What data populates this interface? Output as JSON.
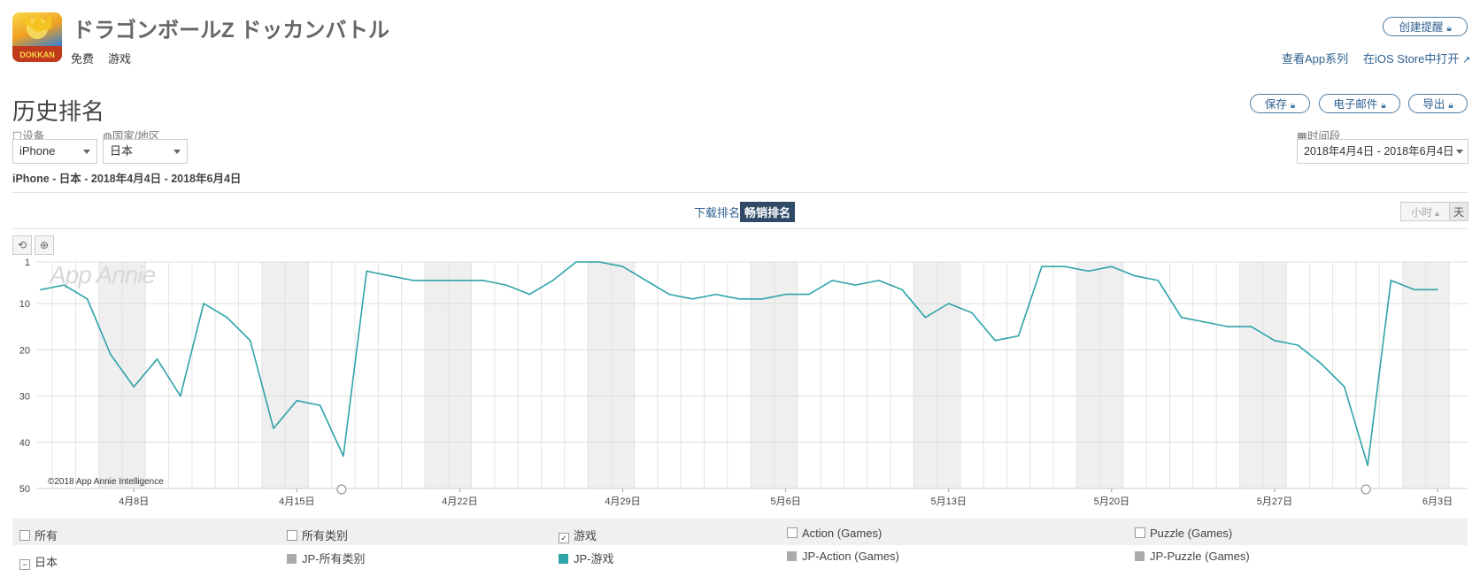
{
  "app": {
    "title": "ドラゴンボールZ ドッカンバトル",
    "price": "免费",
    "category": "游戏",
    "icon": "app-icon-dragonball"
  },
  "header_actions": {
    "create_alert": "创建提醒",
    "view_series": "查看App系列",
    "open_store": "在iOS Store中打开"
  },
  "section": {
    "title": "历史排名",
    "save": "保存",
    "email": "电子邮件",
    "export": "导出"
  },
  "filters": {
    "device_label": "设备",
    "device_value": "iPhone",
    "country_label": "国家/地区",
    "country_value": "日本",
    "period_label": "时间段",
    "period_value": "2018年4月4日 - 2018年6月4日"
  },
  "summary": "iPhone - 日本 - 2018年4月4日 - 2018年6月4日",
  "toggle": {
    "downloads": "下载排名",
    "grossing": "畅销排名",
    "hourly": "小时",
    "daily": "天"
  },
  "chart_data": {
    "type": "line",
    "watermark": "App Annie",
    "copyright": "©2018 App Annie Intelligence",
    "x_tick_labels": [
      "4月8日",
      "4月15日",
      "4月22日",
      "4月29日",
      "5月6日",
      "5月13日",
      "5月20日",
      "5月27日",
      "6月3日"
    ],
    "y_tick_labels": [
      "1",
      "10",
      "20",
      "30",
      "40",
      "50"
    ],
    "ylim": [
      1,
      50
    ],
    "y_inverted": true,
    "x_start": "2018-04-04",
    "x_end": "2018-06-04",
    "weekend_shading": true,
    "series": [
      {
        "name": "JP-游戏",
        "color": "#2ea3a8",
        "values": [
          7,
          6,
          9,
          21,
          28,
          22,
          30,
          10,
          13,
          18,
          37,
          31,
          32,
          43,
          3,
          4,
          5,
          5,
          5,
          5,
          6,
          8,
          5,
          1,
          1,
          2,
          5,
          8,
          9,
          8,
          9,
          9,
          8,
          8,
          5,
          6,
          5,
          7,
          13,
          10,
          12,
          18,
          17,
          2,
          2,
          3,
          2,
          4,
          5,
          13,
          14,
          15,
          15,
          18,
          19,
          23,
          28,
          45,
          5,
          7,
          7
        ]
      }
    ]
  },
  "legend": {
    "row1": [
      "所有",
      "所有类别",
      "游戏",
      "Action (Games)",
      "Puzzle (Games)"
    ],
    "row2_country": "日本",
    "row2": [
      "JP-所有类别",
      "JP-游戏",
      "JP-Action (Games)",
      "JP-Puzzle (Games)"
    ],
    "checked_index": 2,
    "colors": {
      "inactive": "#aaaaaa",
      "active": "#2ea3a8"
    }
  }
}
